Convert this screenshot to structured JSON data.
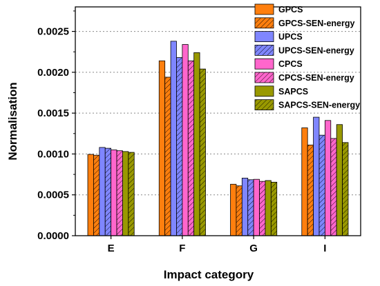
{
  "chart_data": {
    "type": "bar",
    "title": "",
    "xlabel": "Impact category",
    "ylabel": "Normalisation",
    "categories": [
      "E",
      "F",
      "G",
      "I"
    ],
    "ylim": [
      0,
      0.0028
    ],
    "yticks": [
      "0.0000",
      "0.0005",
      "0.0010",
      "0.0015",
      "0.0020",
      "0.0025"
    ],
    "ytick_values": [
      0,
      0.0005,
      0.001,
      0.0015,
      0.002,
      0.0025
    ],
    "grid": "horizontal-dotted",
    "legend_position": "top-right",
    "series": [
      {
        "name": "GPCS",
        "color": "#ff7f0e",
        "hatch": false,
        "values": [
          0.000995,
          0.00214,
          0.00063,
          0.00132
        ]
      },
      {
        "name": "GPCS-SEN-energy",
        "color": "#ff7f0e",
        "hatch": true,
        "values": [
          0.000985,
          0.00194,
          0.00061,
          0.00111
        ]
      },
      {
        "name": "UPCS",
        "color": "#7f86ff",
        "hatch": false,
        "values": [
          0.00108,
          0.00238,
          0.000705,
          0.00145
        ]
      },
      {
        "name": "UPCS-SEN-energy",
        "color": "#7f86ff",
        "hatch": true,
        "values": [
          0.00107,
          0.00218,
          0.000685,
          0.00123
        ]
      },
      {
        "name": "CPCS",
        "color": "#ff66cc",
        "hatch": false,
        "values": [
          0.00105,
          0.00234,
          0.00069,
          0.00141
        ]
      },
      {
        "name": "CPCS-SEN-energy",
        "color": "#ff66cc",
        "hatch": true,
        "values": [
          0.00104,
          0.00214,
          0.000665,
          0.00119
        ]
      },
      {
        "name": "SAPCS",
        "color": "#999900",
        "hatch": false,
        "values": [
          0.00103,
          0.00224,
          0.000675,
          0.00136
        ]
      },
      {
        "name": "SAPCS-SEN-energy",
        "color": "#999900",
        "hatch": true,
        "values": [
          0.00102,
          0.00204,
          0.000655,
          0.00114
        ]
      }
    ]
  }
}
